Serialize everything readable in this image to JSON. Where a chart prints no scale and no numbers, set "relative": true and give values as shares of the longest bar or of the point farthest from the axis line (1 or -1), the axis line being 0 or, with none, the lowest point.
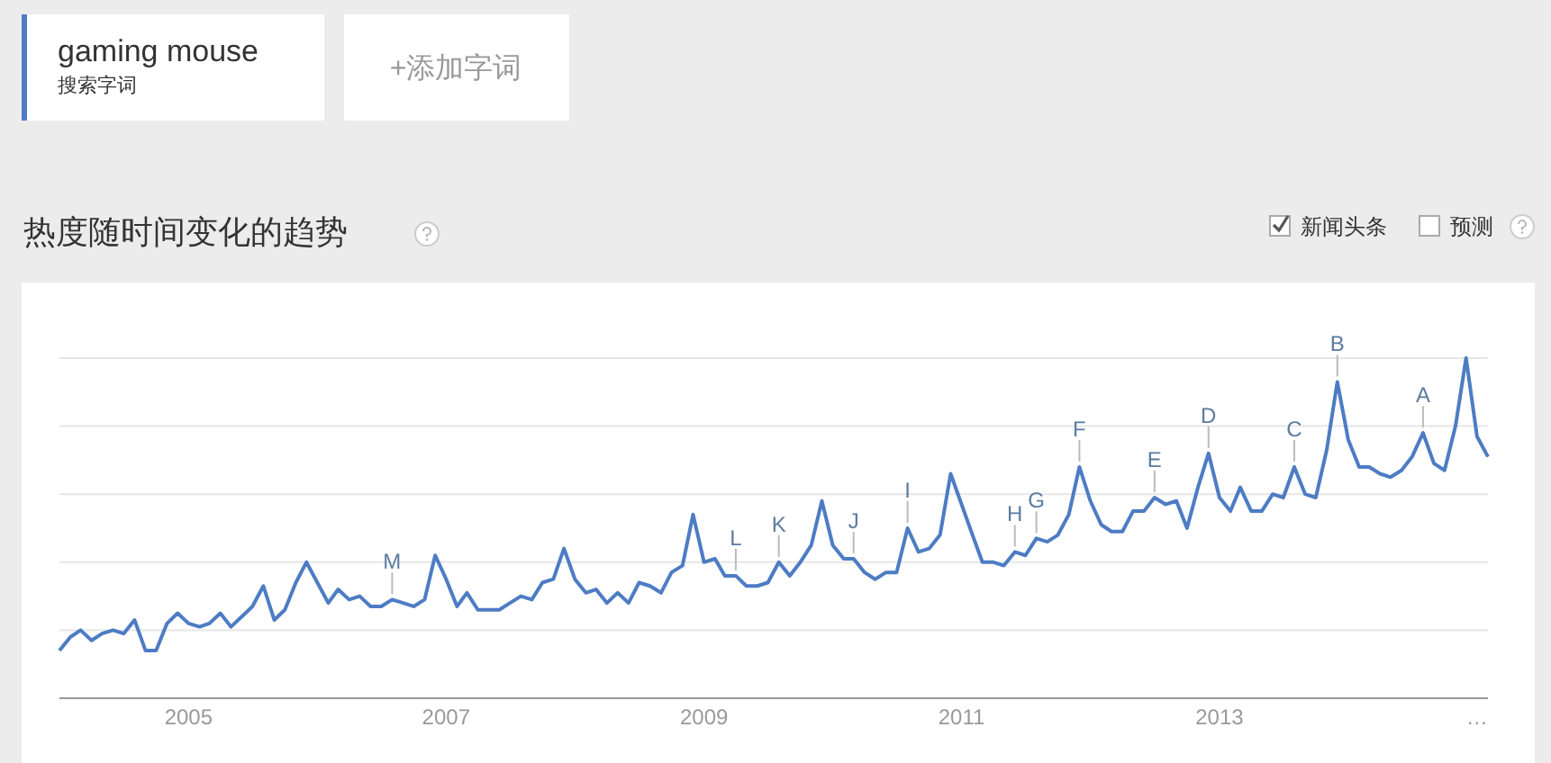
{
  "chart_data": {
    "type": "line",
    "title": "热度随时间变化的趋势",
    "relative": true,
    "grid": "y",
    "legend": "top left",
    "marker": "none",
    "line_style": "solid",
    "xlim": [
      "2004-01",
      "2015-02"
    ],
    "xticks": [
      "2005",
      "2007",
      "2009",
      "2011",
      "2013",
      {
        "value": "2015",
        "label": "…"
      }
    ],
    "series": [
      {
        "name": "gaming mouse",
        "color": "#4d7cc4",
        "x": [
          "2004-01",
          "2004-02",
          "2004-03",
          "2004-04",
          "2004-05",
          "2004-06",
          "2004-07",
          "2004-08",
          "2004-09",
          "2004-10",
          "2004-11",
          "2004-12",
          "2005-01",
          "2005-02",
          "2005-03",
          "2005-04",
          "2005-05",
          "2005-06",
          "2005-07",
          "2005-08",
          "2005-09",
          "2005-10",
          "2005-11",
          "2005-12",
          "2006-01",
          "2006-02",
          "2006-03",
          "2006-04",
          "2006-05",
          "2006-06",
          "2006-07",
          "2006-08",
          "2006-09",
          "2006-10",
          "2006-11",
          "2006-12",
          "2007-01",
          "2007-02",
          "2007-03",
          "2007-04",
          "2007-05",
          "2007-06",
          "2007-07",
          "2007-08",
          "2007-09",
          "2007-10",
          "2007-11",
          "2007-12",
          "2008-01",
          "2008-02",
          "2008-03",
          "2008-04",
          "2008-05",
          "2008-06",
          "2008-07",
          "2008-08",
          "2008-09",
          "2008-10",
          "2008-11",
          "2008-12",
          "2009-01",
          "2009-02",
          "2009-03",
          "2009-04",
          "2009-05",
          "2009-06",
          "2009-07",
          "2009-08",
          "2009-09",
          "2009-10",
          "2009-11",
          "2009-12",
          "2010-01",
          "2010-02",
          "2010-03",
          "2010-04",
          "2010-05",
          "2010-06",
          "2010-07",
          "2010-08",
          "2010-09",
          "2010-10",
          "2010-11",
          "2010-12",
          "2011-01",
          "2011-02",
          "2011-03",
          "2011-04",
          "2011-05",
          "2011-06",
          "2011-07",
          "2011-08",
          "2011-09",
          "2011-10",
          "2011-11",
          "2011-12",
          "2012-01",
          "2012-02",
          "2012-03",
          "2012-04",
          "2012-05",
          "2012-06",
          "2012-07",
          "2012-08",
          "2012-09",
          "2012-10",
          "2012-11",
          "2012-12",
          "2013-01",
          "2013-02",
          "2013-03",
          "2013-04",
          "2013-05",
          "2013-06",
          "2013-07",
          "2013-08",
          "2013-09",
          "2013-10",
          "2013-11",
          "2013-12",
          "2014-01",
          "2014-02",
          "2014-03",
          "2014-04",
          "2014-05",
          "2014-06",
          "2014-07",
          "2014-08",
          "2014-09",
          "2014-10",
          "2014-11",
          "2014-12",
          "2015-01",
          "2015-02"
        ],
        "values": [
          0.14,
          0.18,
          0.2,
          0.17,
          0.19,
          0.2,
          0.19,
          0.23,
          0.14,
          0.14,
          0.22,
          0.25,
          0.22,
          0.21,
          0.22,
          0.25,
          0.21,
          0.24,
          0.27,
          0.33,
          0.23,
          0.26,
          0.34,
          0.4,
          0.34,
          0.28,
          0.32,
          0.29,
          0.3,
          0.27,
          0.27,
          0.29,
          0.28,
          0.27,
          0.29,
          0.42,
          0.35,
          0.27,
          0.31,
          0.26,
          0.26,
          0.26,
          0.28,
          0.3,
          0.29,
          0.34,
          0.35,
          0.44,
          0.35,
          0.31,
          0.32,
          0.28,
          0.31,
          0.28,
          0.34,
          0.33,
          0.31,
          0.37,
          0.39,
          0.54,
          0.4,
          0.41,
          0.36,
          0.36,
          0.33,
          0.33,
          0.34,
          0.4,
          0.36,
          0.4,
          0.45,
          0.58,
          0.45,
          0.41,
          0.41,
          0.37,
          0.35,
          0.37,
          0.37,
          0.5,
          0.43,
          0.44,
          0.48,
          0.66,
          0.57,
          0.48,
          0.4,
          0.4,
          0.39,
          0.43,
          0.42,
          0.47,
          0.46,
          0.48,
          0.54,
          0.68,
          0.58,
          0.51,
          0.49,
          0.49,
          0.55,
          0.55,
          0.59,
          0.57,
          0.58,
          0.5,
          0.62,
          0.72,
          0.59,
          0.55,
          0.62,
          0.55,
          0.55,
          0.6,
          0.59,
          0.68,
          0.6,
          0.59,
          0.73,
          0.93,
          0.76,
          0.68,
          0.68,
          0.66,
          0.65,
          0.67,
          0.71,
          0.78,
          0.69,
          0.67,
          0.8,
          1,
          0.77,
          0.71
        ]
      }
    ],
    "annotations": [
      {
        "text": "M",
        "x": "2006-08",
        "y": 0.29
      },
      {
        "text": "L",
        "x": "2009-04",
        "y": 0.36
      },
      {
        "text": "K",
        "x": "2009-08",
        "y": 0.4
      },
      {
        "text": "J",
        "x": "2010-03",
        "y": 0.41
      },
      {
        "text": "I",
        "x": "2010-08",
        "y": 0.5
      },
      {
        "text": "H",
        "x": "2011-06",
        "y": 0.43
      },
      {
        "text": "G",
        "x": "2011-08",
        "y": 0.47
      },
      {
        "text": "F",
        "x": "2011-12",
        "y": 0.68
      },
      {
        "text": "E",
        "x": "2012-07",
        "y": 0.59
      },
      {
        "text": "D",
        "x": "2012-12",
        "y": 0.72
      },
      {
        "text": "C",
        "x": "2013-08",
        "y": 0.68
      },
      {
        "text": "B",
        "x": "2013-12",
        "y": 0.93
      },
      {
        "text": "A",
        "x": "2014-08",
        "y": 0.78
      },
      "搜索字词",
      "+添加字词",
      "新闻头条",
      "预测"
    ]
  }
}
